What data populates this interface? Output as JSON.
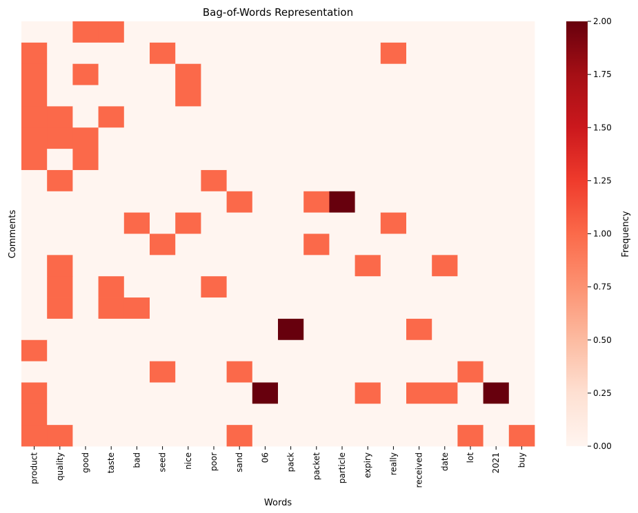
{
  "chart_data": {
    "type": "heatmap",
    "title": "Bag-of-Words Representation",
    "xlabel": "Words",
    "ylabel": "Comments",
    "x_categories": [
      "product",
      "quality",
      "good",
      "taste",
      "bad",
      "seed",
      "nice",
      "poor",
      "sand",
      "06",
      "pack",
      "packet",
      "particle",
      "expiry",
      "really",
      "received",
      "date",
      "lot",
      "2021",
      "buy"
    ],
    "row_count": 20,
    "matrix": [
      [
        0,
        0,
        1,
        1,
        0,
        0,
        0,
        0,
        0,
        0,
        0,
        0,
        0,
        0,
        0,
        0,
        0,
        0,
        0,
        0
      ],
      [
        1,
        0,
        0,
        0,
        0,
        1,
        0,
        0,
        0,
        0,
        0,
        0,
        0,
        0,
        1,
        0,
        0,
        0,
        0,
        0
      ],
      [
        1,
        0,
        1,
        0,
        0,
        0,
        1,
        0,
        0,
        0,
        0,
        0,
        0,
        0,
        0,
        0,
        0,
        0,
        0,
        0
      ],
      [
        1,
        0,
        0,
        0,
        0,
        0,
        1,
        0,
        0,
        0,
        0,
        0,
        0,
        0,
        0,
        0,
        0,
        0,
        0,
        0
      ],
      [
        1,
        1,
        0,
        1,
        0,
        0,
        0,
        0,
        0,
        0,
        0,
        0,
        0,
        0,
        0,
        0,
        0,
        0,
        0,
        0
      ],
      [
        1,
        1,
        1,
        0,
        0,
        0,
        0,
        0,
        0,
        0,
        0,
        0,
        0,
        0,
        0,
        0,
        0,
        0,
        0,
        0
      ],
      [
        1,
        0,
        1,
        0,
        0,
        0,
        0,
        0,
        0,
        0,
        0,
        0,
        0,
        0,
        0,
        0,
        0,
        0,
        0,
        0
      ],
      [
        0,
        1,
        0,
        0,
        0,
        0,
        0,
        1,
        0,
        0,
        0,
        0,
        0,
        0,
        0,
        0,
        0,
        0,
        0,
        0
      ],
      [
        0,
        0,
        0,
        0,
        0,
        0,
        0,
        0,
        1,
        0,
        0,
        1,
        2,
        0,
        0,
        0,
        0,
        0,
        0,
        0
      ],
      [
        0,
        0,
        0,
        0,
        1,
        0,
        1,
        0,
        0,
        0,
        0,
        0,
        0,
        0,
        1,
        0,
        0,
        0,
        0,
        0
      ],
      [
        0,
        0,
        0,
        0,
        0,
        1,
        0,
        0,
        0,
        0,
        0,
        1,
        0,
        0,
        0,
        0,
        0,
        0,
        0,
        0
      ],
      [
        0,
        1,
        0,
        0,
        0,
        0,
        0,
        0,
        0,
        0,
        0,
        0,
        0,
        1,
        0,
        0,
        1,
        0,
        0,
        0
      ],
      [
        0,
        1,
        0,
        1,
        0,
        0,
        0,
        1,
        0,
        0,
        0,
        0,
        0,
        0,
        0,
        0,
        0,
        0,
        0,
        0
      ],
      [
        0,
        1,
        0,
        1,
        1,
        0,
        0,
        0,
        0,
        0,
        0,
        0,
        0,
        0,
        0,
        0,
        0,
        0,
        0,
        0
      ],
      [
        0,
        0,
        0,
        0,
        0,
        0,
        0,
        0,
        0,
        0,
        2,
        0,
        0,
        0,
        0,
        1,
        0,
        0,
        0,
        0
      ],
      [
        1,
        0,
        0,
        0,
        0,
        0,
        0,
        0,
        0,
        0,
        0,
        0,
        0,
        0,
        0,
        0,
        0,
        0,
        0,
        0
      ],
      [
        0,
        0,
        0,
        0,
        0,
        1,
        0,
        0,
        1,
        0,
        0,
        0,
        0,
        0,
        0,
        0,
        0,
        1,
        0,
        0
      ],
      [
        1,
        0,
        0,
        0,
        0,
        0,
        0,
        0,
        0,
        2,
        0,
        0,
        0,
        1,
        0,
        1,
        1,
        0,
        2,
        0
      ],
      [
        1,
        0,
        0,
        0,
        0,
        0,
        0,
        0,
        0,
        0,
        0,
        0,
        0,
        0,
        0,
        0,
        0,
        0,
        0,
        0
      ],
      [
        1,
        1,
        0,
        0,
        0,
        0,
        0,
        0,
        1,
        0,
        0,
        0,
        0,
        0,
        0,
        0,
        0,
        1,
        0,
        1
      ]
    ],
    "vmin": 0,
    "vmax": 2,
    "colormap": "Reds",
    "colorbar": {
      "label": "Frequency",
      "ticks": [
        0.0,
        0.25,
        0.5,
        0.75,
        1.0,
        1.25,
        1.5,
        1.75,
        2.0
      ],
      "tick_labels": [
        "0.00",
        "0.25",
        "0.50",
        "0.75",
        "1.00",
        "1.25",
        "1.50",
        "1.75",
        "2.00"
      ]
    },
    "colors": {
      "zero": "#fff5f0",
      "one": "#fb694a",
      "two": "#67000d"
    }
  }
}
